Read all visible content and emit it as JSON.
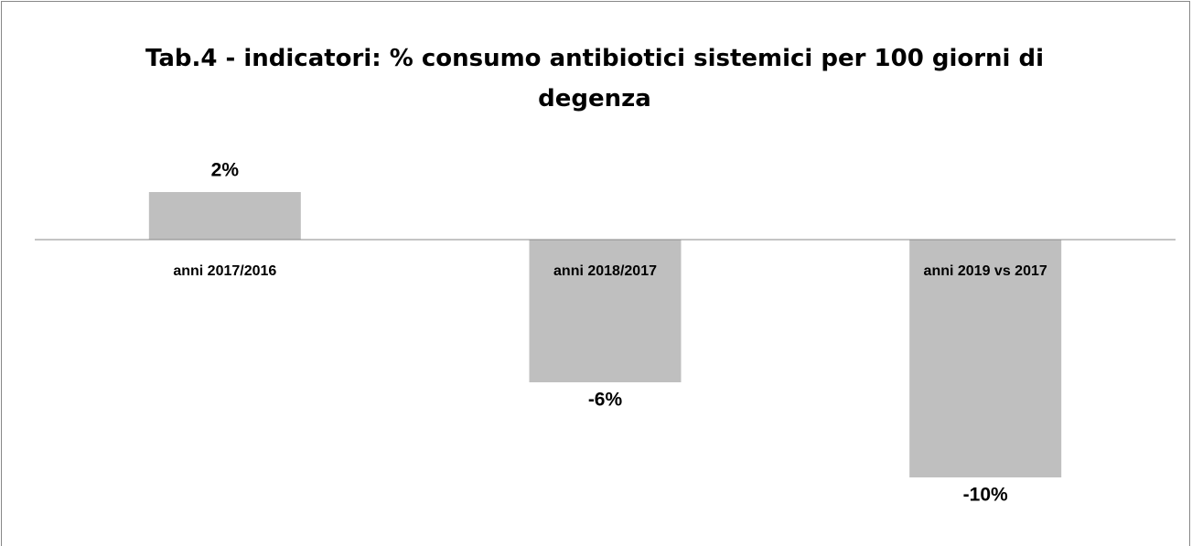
{
  "chart_data": {
    "type": "bar",
    "title": "Tab.4 - indicatori: % consumo antibiotici sistemici per 100 giorni di degenza",
    "categories": [
      "anni 2017/2016",
      "anni 2018/2017",
      "anni  2019 vs 2017"
    ],
    "values": [
      2,
      -6,
      -10
    ],
    "value_labels": [
      "2%",
      "-6%",
      "-10%"
    ],
    "color": "#bfbfbf"
  }
}
